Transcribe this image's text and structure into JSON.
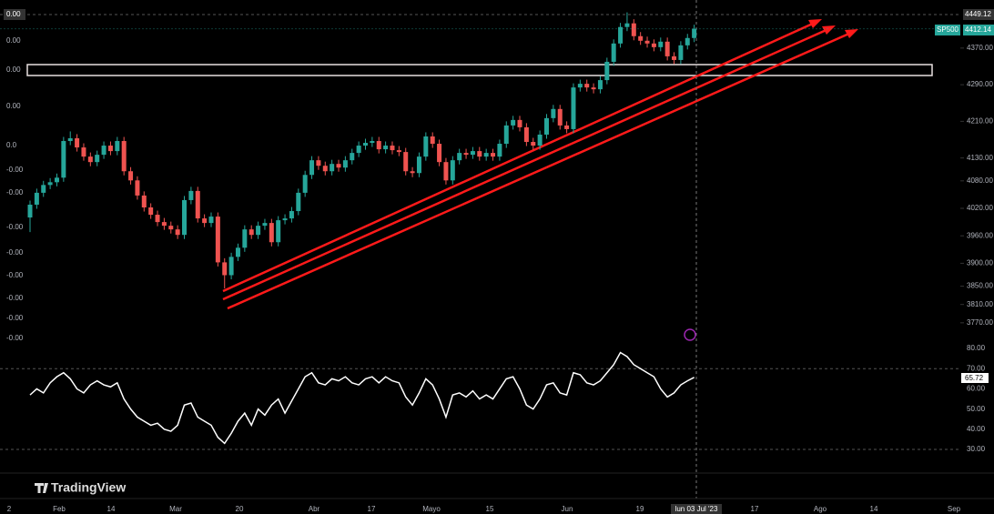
{
  "chart_data": {
    "type": "candlestick",
    "symbol": "SP500",
    "crosshair_price": "4449.12",
    "crosshair_date": "lun 03 Jul '23",
    "brand": "TradingView",
    "open": [
      4000,
      4028,
      4054,
      4071,
      4077,
      4087,
      4167,
      4173,
      4153,
      4133,
      4121,
      4137,
      4157,
      4145,
      4167,
      4101,
      4081,
      4048,
      4022,
      4006,
      3990,
      3982,
      3974,
      3962,
      4038,
      4058,
      3998,
      3988,
      4002,
      3902,
      3874,
      3914,
      3934,
      3974,
      3962,
      3982,
      3988,
      3946,
      3994,
      3998,
      4014,
      4054,
      4093,
      4125,
      4113,
      4101,
      4117,
      4109,
      4125,
      4141,
      4157,
      4163,
      4167,
      4149,
      4157,
      4147,
      4143,
      4101,
      4097,
      4133,
      4177,
      4161,
      4121,
      4081,
      4125,
      4141,
      4137,
      4145,
      4133,
      4141,
      4133,
      4161,
      4201,
      4213,
      4197,
      4165,
      4157,
      4181,
      4217,
      4237,
      4201,
      4193,
      4284,
      4292,
      4284,
      4280,
      4300,
      4340,
      4380,
      4416,
      4424,
      4396,
      4386,
      4380,
      4372,
      4384,
      4352,
      4344,
      4376,
      4392
    ],
    "high": [
      4037,
      4063,
      4080,
      4086,
      4096,
      4176,
      4188,
      4182,
      4162,
      4142,
      4146,
      4166,
      4166,
      4176,
      4176,
      4110,
      4090,
      4057,
      4031,
      4015,
      3999,
      3991,
      3983,
      4047,
      4067,
      4067,
      4007,
      4011,
      4011,
      3911,
      3923,
      3943,
      3983,
      3983,
      3991,
      3997,
      3997,
      4003,
      4007,
      4023,
      4063,
      4102,
      4134,
      4134,
      4122,
      4126,
      4126,
      4134,
      4150,
      4166,
      4172,
      4176,
      4176,
      4166,
      4166,
      4156,
      4152,
      4110,
      4142,
      4186,
      4186,
      4170,
      4130,
      4134,
      4150,
      4150,
      4154,
      4154,
      4150,
      4150,
      4170,
      4210,
      4222,
      4222,
      4206,
      4174,
      4190,
      4226,
      4246,
      4246,
      4210,
      4293,
      4301,
      4301,
      4293,
      4309,
      4349,
      4389,
      4425,
      4448,
      4433,
      4405,
      4395,
      4389,
      4393,
      4393,
      4361,
      4385,
      4401,
      4421
    ],
    "low": [
      3968,
      4019,
      4045,
      4062,
      4068,
      4078,
      4158,
      4144,
      4124,
      4112,
      4112,
      4128,
      4136,
      4136,
      4092,
      4072,
      4039,
      4013,
      3997,
      3981,
      3973,
      3965,
      3953,
      3953,
      4029,
      3989,
      3979,
      3979,
      3893,
      3845,
      3865,
      3905,
      3925,
      3953,
      3953,
      3973,
      3937,
      3937,
      3985,
      3989,
      4005,
      4045,
      4084,
      4104,
      4092,
      4092,
      4100,
      4100,
      4116,
      4132,
      4148,
      4154,
      4140,
      4140,
      4138,
      4134,
      4092,
      4088,
      4088,
      4124,
      4152,
      4112,
      4072,
      4072,
      4116,
      4128,
      4128,
      4124,
      4124,
      4124,
      4124,
      4152,
      4192,
      4188,
      4156,
      4148,
      4148,
      4172,
      4208,
      4192,
      4184,
      4184,
      4275,
      4275,
      4271,
      4271,
      4291,
      4331,
      4371,
      4407,
      4387,
      4377,
      4371,
      4363,
      4363,
      4343,
      4335,
      4335,
      4367,
      4383
    ],
    "close": [
      4028,
      4054,
      4071,
      4077,
      4087,
      4167,
      4173,
      4153,
      4133,
      4121,
      4137,
      4157,
      4145,
      4167,
      4101,
      4081,
      4048,
      4022,
      4006,
      3990,
      3982,
      3974,
      3962,
      4038,
      4058,
      3998,
      3988,
      4002,
      3902,
      3874,
      3914,
      3934,
      3974,
      3962,
      3982,
      3988,
      3946,
      3994,
      3998,
      4014,
      4054,
      4093,
      4125,
      4113,
      4101,
      4117,
      4109,
      4125,
      4141,
      4157,
      4163,
      4167,
      4149,
      4157,
      4147,
      4143,
      4101,
      4097,
      4133,
      4177,
      4161,
      4121,
      4081,
      4125,
      4141,
      4137,
      4145,
      4133,
      4141,
      4133,
      4161,
      4201,
      4213,
      4197,
      4165,
      4157,
      4181,
      4217,
      4237,
      4201,
      4193,
      4284,
      4292,
      4284,
      4280,
      4300,
      4340,
      4380,
      4416,
      4424,
      4396,
      4386,
      4380,
      4372,
      4384,
      4352,
      4344,
      4376,
      4392,
      4412.14
    ],
    "up_color": "#26a69a",
    "down_color": "#ef5350",
    "ylim": [
      3720,
      4475
    ],
    "yticks": [
      {
        "value": 4370,
        "label": "4370.00"
      },
      {
        "value": 4290,
        "label": "4290.00"
      },
      {
        "value": 4210,
        "label": "4210.00"
      },
      {
        "value": 4130,
        "label": "4130.00"
      },
      {
        "value": 4080,
        "label": "4080.00"
      },
      {
        "value": 4020,
        "label": "4020.00"
      },
      {
        "value": 3960,
        "label": "3960.00"
      },
      {
        "value": 3900,
        "label": "3900.00"
      },
      {
        "value": 3850,
        "label": "3850.00"
      },
      {
        "value": 3810,
        "label": "3810.00"
      },
      {
        "value": 3770,
        "label": "3770.00"
      }
    ],
    "left_labels": [
      "0.00",
      "0.00",
      "0.00",
      "0.00",
      "0.0",
      "-0.00",
      "-0.00",
      "-0.00",
      "-0.00",
      "-0.00",
      "-0.00",
      "-0.00",
      "-0.00"
    ],
    "time_labels": [
      "2",
      "Feb",
      "14",
      "Mar",
      "20",
      "Abr",
      "17",
      "Mayo",
      "15",
      "Jun",
      "19",
      "17",
      "Ago",
      "14",
      "Sep"
    ],
    "rsi": {
      "color": "#ffffff",
      "ylim": [
        22.8,
        81.4
      ],
      "yticks": [
        {
          "value": 80,
          "label": "80.00"
        },
        {
          "value": 70,
          "label": "70.00"
        },
        {
          "value": 60,
          "label": "60.00"
        },
        {
          "value": 50,
          "label": "50.00"
        },
        {
          "value": 40,
          "label": "40.00"
        },
        {
          "value": 30,
          "label": "30.00"
        }
      ],
      "values": [
        57,
        60,
        58,
        63,
        66,
        68,
        65,
        60,
        58,
        62,
        64,
        62,
        61,
        63,
        55,
        50,
        46,
        44,
        42,
        43,
        40,
        39,
        42,
        52,
        53,
        46,
        44,
        42,
        36,
        33,
        38,
        44,
        48,
        42,
        50,
        47,
        52,
        55,
        48,
        54,
        60,
        66,
        68,
        63,
        62,
        65,
        64,
        66,
        63,
        62,
        65,
        66,
        63,
        66,
        64,
        63,
        56,
        52,
        58,
        65,
        62,
        55,
        46,
        57,
        58,
        56,
        59,
        55,
        57,
        55,
        60,
        65,
        66,
        60,
        52,
        50,
        55,
        62,
        63,
        58,
        57,
        68,
        67,
        63,
        62,
        64,
        68,
        72,
        78,
        76,
        72,
        70,
        68,
        66,
        60,
        56,
        58,
        62,
        64,
        65.72
      ]
    }
  }
}
